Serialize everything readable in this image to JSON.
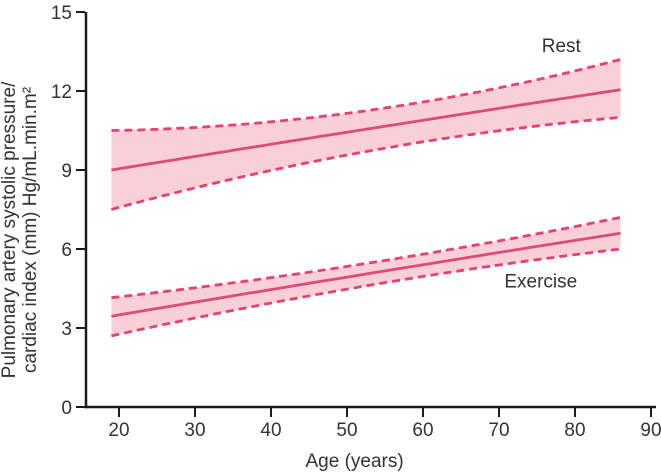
{
  "chart_data": {
    "type": "area",
    "title": "",
    "xlabel": "Age (years)",
    "ylabel_lines": [
      "Pulmonary artery systolic pressure/",
      "cardiac index (mm) Hg/mL.min.m²"
    ],
    "xlim": [
      15.5,
      90.5
    ],
    "ylim": [
      0,
      15
    ],
    "x_ticks": [
      20,
      30,
      40,
      50,
      60,
      70,
      80,
      90
    ],
    "y_ticks": [
      0,
      3,
      6,
      9,
      12,
      15
    ],
    "grid": false,
    "legend_position": "inline-annotations",
    "age_range": [
      19,
      86
    ],
    "series": [
      {
        "name": "Rest",
        "annotation": {
          "text": "Rest",
          "age": 78.2,
          "value": 13.75
        },
        "sample_ages": [
          19,
          52.5,
          86
        ],
        "center": [
          9.0,
          10.55,
          12.05
        ],
        "upper_ci": [
          10.5,
          11.25,
          13.2
        ],
        "lower_ci": [
          7.5,
          9.7,
          11.0
        ]
      },
      {
        "name": "Exercise",
        "annotation": {
          "text": "Exercise",
          "age": 75.5,
          "value": 4.8
        },
        "sample_ages": [
          19,
          52.5,
          86
        ],
        "center": [
          3.45,
          5.05,
          6.6
        ],
        "upper_ci": [
          4.15,
          5.45,
          7.2
        ],
        "lower_ci": [
          2.7,
          4.6,
          6.0
        ]
      }
    ],
    "colors": {
      "band_fill": "#f9d0da",
      "ci_line": "#e8416f",
      "center_line": "#df4a76",
      "axis": "#1a1a1a",
      "text": "#333333"
    }
  }
}
